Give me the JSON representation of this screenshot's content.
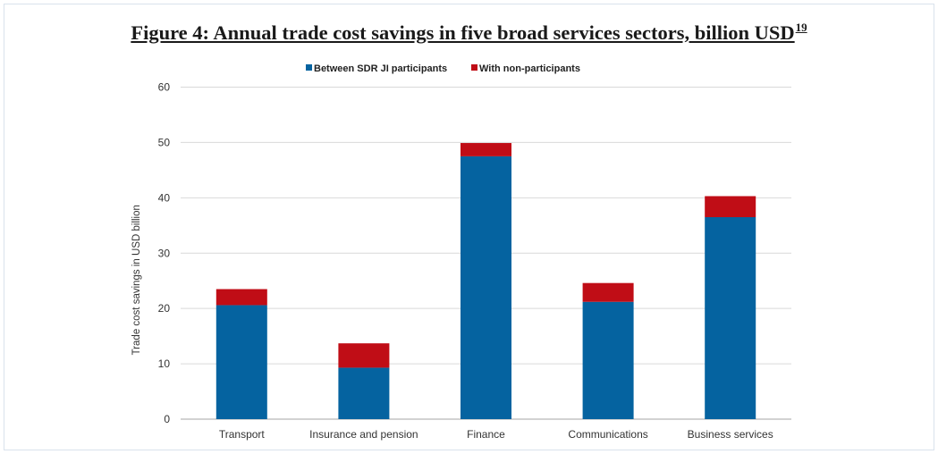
{
  "figure": {
    "title": "Figure 4: Annual trade cost savings in five broad services sectors, billion USD",
    "footnote": "19"
  },
  "chart_data": {
    "type": "bar",
    "stacked": true,
    "title": "Figure 4: Annual trade cost savings in five broad services sectors, billion USD",
    "xlabel": "",
    "ylabel": "Trade cost savings in USD billion",
    "ylim": [
      0,
      60
    ],
    "yticks": [
      0,
      10,
      20,
      30,
      40,
      50,
      60
    ],
    "grid": true,
    "legend_position": "top",
    "categories": [
      "Transport",
      "Insurance and pension",
      "Finance",
      "Communications",
      "Business services"
    ],
    "series": [
      {
        "name": "Between SDR JI participants",
        "color": "#0563a0",
        "values": [
          20.6,
          9.3,
          47.5,
          21.2,
          36.5
        ]
      },
      {
        "name": "With non-participants",
        "color": "#c00d16",
        "values": [
          2.9,
          4.4,
          2.4,
          3.4,
          3.8
        ]
      }
    ]
  }
}
